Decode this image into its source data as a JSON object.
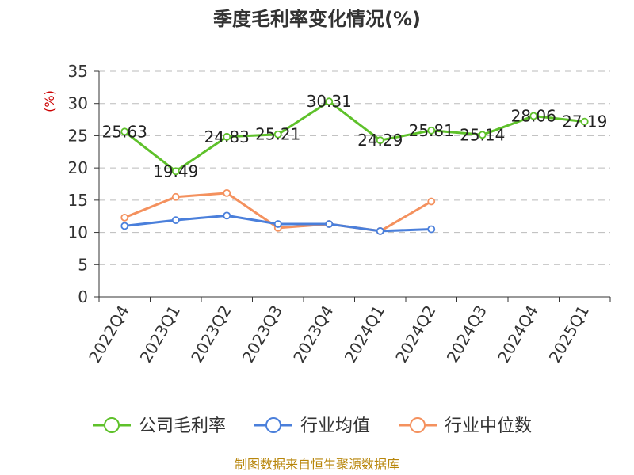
{
  "chart_data": {
    "type": "line",
    "title": "季度毛利率变化情况(%)",
    "ylabel": "(%)",
    "ylim": [
      0,
      35
    ],
    "yticks": [
      0,
      5,
      10,
      15,
      20,
      25,
      30,
      35
    ],
    "grid": true,
    "legend_position": "bottom",
    "categories": [
      "2022Q4",
      "2023Q1",
      "2023Q2",
      "2023Q3",
      "2023Q4",
      "2024Q1",
      "2024Q2",
      "2024Q3",
      "2024Q4",
      "2025Q1"
    ],
    "series": [
      {
        "name": "公司毛利率",
        "color": "#5ec12a",
        "values": [
          25.63,
          19.49,
          24.83,
          25.21,
          30.31,
          24.29,
          25.81,
          25.14,
          28.06,
          27.19
        ],
        "labels": [
          "25.63",
          "19.49",
          "24.83",
          "25.21",
          "30.31",
          "24.29",
          "25.81",
          "25.14",
          "28.06",
          "27.19"
        ]
      },
      {
        "name": "行业均值",
        "color": "#4a7fdb",
        "values": [
          11.0,
          11.9,
          12.6,
          11.3,
          11.3,
          10.2,
          10.5,
          null,
          null,
          null
        ]
      },
      {
        "name": "行业中位数",
        "color": "#f4915e",
        "values": [
          12.3,
          15.5,
          16.1,
          10.7,
          11.3,
          10.2,
          14.8,
          null,
          null,
          null
        ]
      }
    ],
    "source": "制图数据来自恒生聚源数据库"
  }
}
